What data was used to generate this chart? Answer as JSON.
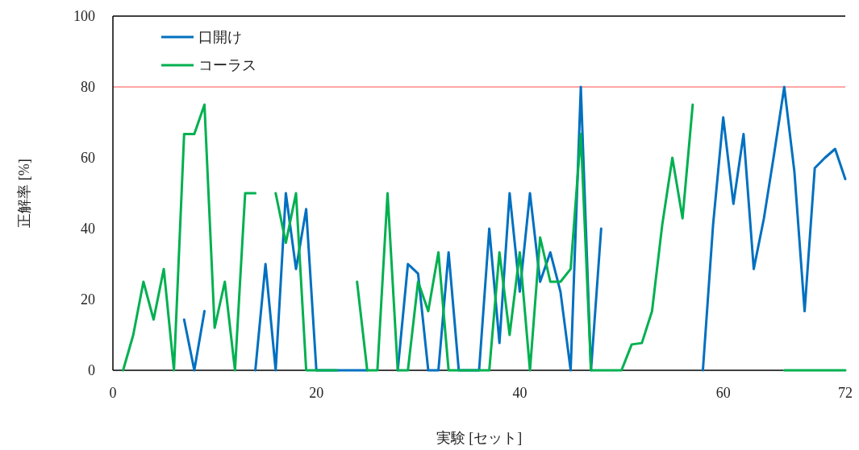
{
  "chart_data": {
    "type": "line",
    "xlabel": "実験 [セット]",
    "ylabel": "正解率 [%]",
    "x": [
      1,
      2,
      3,
      4,
      5,
      6,
      7,
      8,
      9,
      10,
      11,
      12,
      13,
      14,
      15,
      16,
      17,
      18,
      19,
      20,
      21,
      22,
      23,
      24,
      25,
      26,
      27,
      28,
      29,
      30,
      31,
      32,
      33,
      34,
      35,
      36,
      37,
      38,
      39,
      40,
      41,
      42,
      43,
      44,
      45,
      46,
      47,
      48,
      49,
      50,
      51,
      52,
      53,
      54,
      55,
      56,
      57,
      58,
      59,
      60,
      61,
      62,
      63,
      64,
      65,
      66,
      67,
      68,
      69,
      70,
      71,
      72
    ],
    "series": [
      {
        "name": "口開け",
        "color": "#0070c0",
        "values": [
          null,
          null,
          null,
          null,
          null,
          null,
          14.3,
          0,
          16.7,
          null,
          null,
          null,
          null,
          0,
          30,
          0,
          50,
          28.6,
          45.5,
          0,
          0,
          0,
          0,
          0,
          0,
          null,
          null,
          0,
          30,
          27.3,
          0,
          0,
          33.3,
          0,
          0,
          0,
          40,
          7.7,
          50,
          22.2,
          50,
          25,
          33.3,
          22.2,
          0,
          80,
          0,
          40,
          null,
          null,
          null,
          null,
          null,
          null,
          null,
          null,
          null,
          0,
          41,
          71.4,
          47,
          66.7,
          28.6,
          42.9,
          61,
          80,
          56,
          16.7,
          57.1,
          60,
          62.5,
          54
        ]
      },
      {
        "name": "コーラス",
        "color": "#00b050",
        "values": [
          0,
          10,
          25,
          14.3,
          28.6,
          0,
          66.7,
          66.7,
          75,
          12,
          25,
          0,
          50,
          50,
          null,
          50,
          36,
          50,
          0,
          0,
          0,
          0,
          null,
          25,
          0,
          0,
          50,
          0,
          0,
          25,
          16.7,
          33.3,
          0,
          0,
          0,
          0,
          0,
          33.3,
          10,
          33.3,
          0,
          37.5,
          25,
          25,
          28.6,
          66.7,
          0,
          0,
          0,
          0,
          7.3,
          7.7,
          16.7,
          41,
          60,
          42.9,
          75,
          null,
          null,
          null,
          null,
          null,
          null,
          null,
          null,
          0,
          0,
          0,
          0,
          0,
          0,
          0
        ]
      }
    ],
    "ref_lines": [
      {
        "axis": "y",
        "value": 80,
        "color": "#ff4b4b"
      }
    ],
    "xlim": [
      0,
      72
    ],
    "xticks": [
      0,
      20,
      40,
      60,
      72
    ],
    "ylim": [
      0,
      100
    ],
    "yticks": [
      0,
      20,
      40,
      60,
      80,
      100
    ],
    "legend": "top left"
  }
}
